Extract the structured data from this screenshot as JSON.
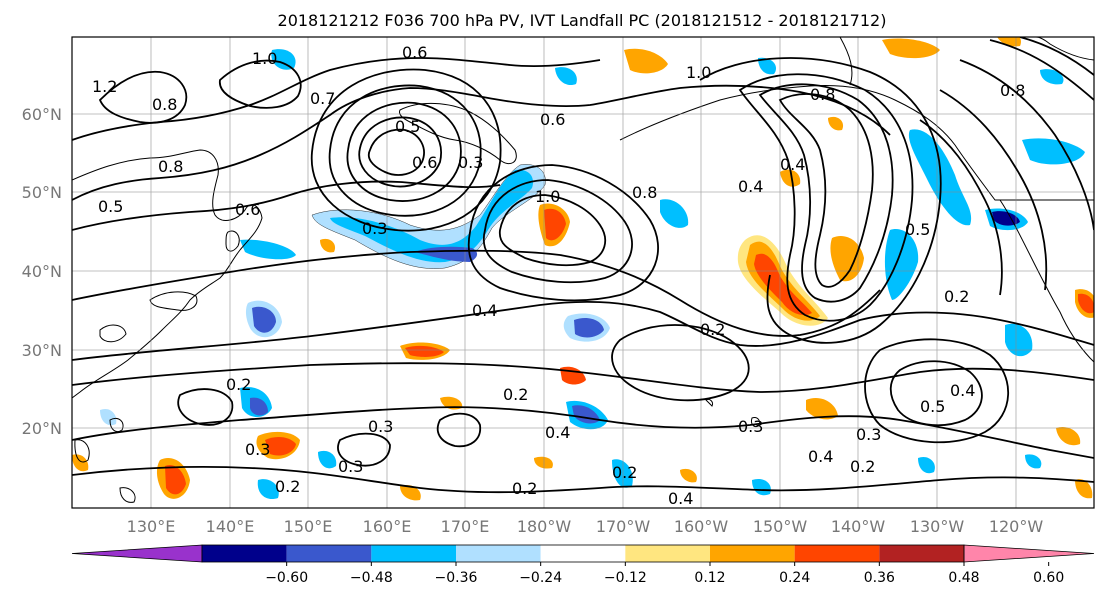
{
  "title": "2018121212 F036 700 hPa PV, IVT Landfall PC (2018121512 - 2018121712)",
  "lat_labels": [
    "60°N",
    "50°N",
    "40°N",
    "30°N",
    "20°N"
  ],
  "lon_labels": [
    "130°E",
    "140°E",
    "150°E",
    "160°E",
    "170°E",
    "180°W",
    "170°W",
    "160°W",
    "150°W",
    "140°W",
    "130°W",
    "120°W"
  ],
  "contour_labels": [
    "1.0",
    "0.6",
    "1.2",
    "0.8",
    "0.7",
    "0.5",
    "0.6",
    "0.6",
    "1.0",
    "0.8",
    "0.5",
    "0.3",
    "0.3",
    "0.6",
    "0.8",
    "1.0",
    "0.8",
    "0.4",
    "0.4",
    "0.5",
    "0.8",
    "0.4",
    "0.2",
    "0.2",
    "0.2",
    "0.3",
    "0.2",
    "0.3",
    "0.4",
    "0.2",
    "0.3",
    "0.2",
    "0.2",
    "0.4",
    "0.3",
    "0.4",
    "0.3",
    "0.2",
    "0.5",
    "0.4"
  ],
  "colorbar": {
    "ticks": [
      "−0.60",
      "−0.48",
      "−0.36",
      "−0.24",
      "−0.12",
      "0.12",
      "0.24",
      "0.36",
      "0.48",
      "0.60"
    ],
    "colors": [
      "#9932cc",
      "#00008b",
      "#3a58cd",
      "#00bfff",
      "#b0e0ff",
      "#ffffff",
      "#ffe680",
      "#ffa500",
      "#ff4500",
      "#b22222",
      "#ff85aa"
    ]
  },
  "fill_colors": {
    "light_blue": "#b0e0ff",
    "deep_sky": "#00bfff",
    "royal_blue": "#3a58cd",
    "navy": "#00008b",
    "light_yellow": "#ffe680",
    "orange": "#ffa500",
    "red_orange": "#ff4500"
  }
}
